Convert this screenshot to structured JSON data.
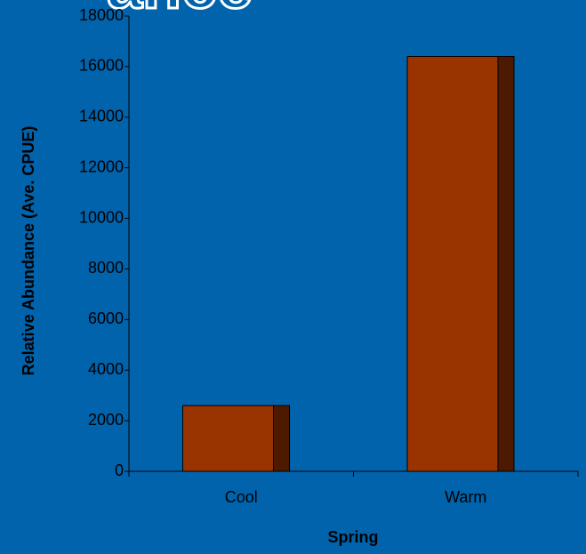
{
  "chart_data": {
    "type": "bar",
    "title": "ance",
    "xlabel": "Spring",
    "ylabel": "Relative Abundance (Ave. CPUE)",
    "categories": [
      "Cool",
      "Warm"
    ],
    "values": [
      2600,
      16400
    ],
    "color": "#993300",
    "side_color": "#4d1a00",
    "ylim": [
      0,
      18000
    ],
    "yticks": [
      0,
      2000,
      4000,
      6000,
      8000,
      10000,
      12000,
      14000,
      16000,
      18000
    ],
    "grid": false
  }
}
